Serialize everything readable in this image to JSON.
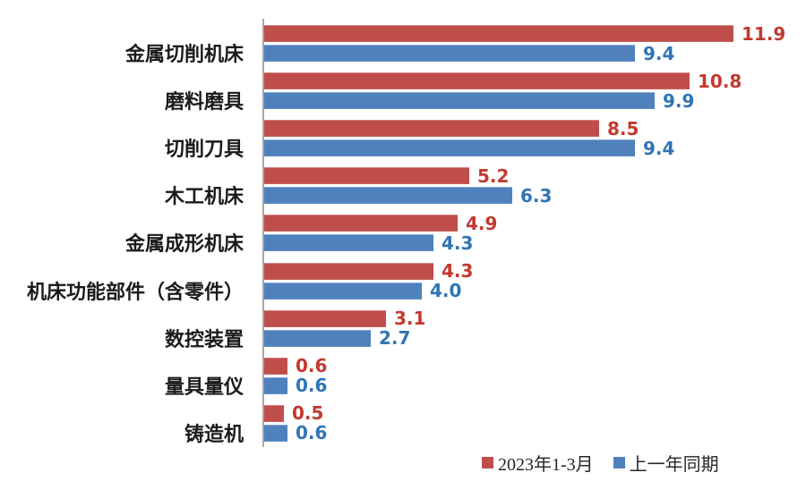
{
  "chart_data": {
    "type": "bar",
    "orientation": "horizontal",
    "title": "",
    "xlabel": "",
    "ylabel": "",
    "xlim": [
      0,
      13.4
    ],
    "grid": false,
    "legend_position": "bottom-right",
    "categories": [
      "金属切削机床",
      "磨料磨具",
      "切削刀具",
      "木工机床",
      "金属成形机床",
      "机床功能部件（含零件）",
      "数控装置",
      "量具量仪",
      "铸造机"
    ],
    "series": [
      {
        "name": "2023年1-3月",
        "color": "#bf4e4b",
        "label_color": "#c2392f",
        "values": [
          11.9,
          10.8,
          8.5,
          5.2,
          4.9,
          4.3,
          3.1,
          0.6,
          0.5
        ]
      },
      {
        "name": "上一年同期",
        "color": "#4f81bd",
        "label_color": "#2f75b5",
        "values": [
          9.4,
          9.9,
          9.4,
          6.3,
          4.3,
          4.0,
          2.7,
          0.6,
          0.6
        ]
      }
    ],
    "value_labels": [
      [
        "11.9",
        "10.8",
        "8.5",
        "5.2",
        "4.9",
        "4.3",
        "3.1",
        "0.6",
        "0.5"
      ],
      [
        "9.4",
        "9.9",
        "9.4",
        "6.3",
        "4.3",
        "4.0",
        "2.7",
        "0.6",
        "0.6"
      ]
    ]
  },
  "legend": {
    "items": [
      {
        "label": "2023年1-3月",
        "color": "#bf4e4b"
      },
      {
        "label": "上一年同期",
        "color": "#4f81bd"
      }
    ]
  },
  "colors": {
    "background": "#ffffff",
    "axis_line": "#a6a6a6",
    "category_text": "#1b1b1b",
    "legend_text": "#262626"
  }
}
